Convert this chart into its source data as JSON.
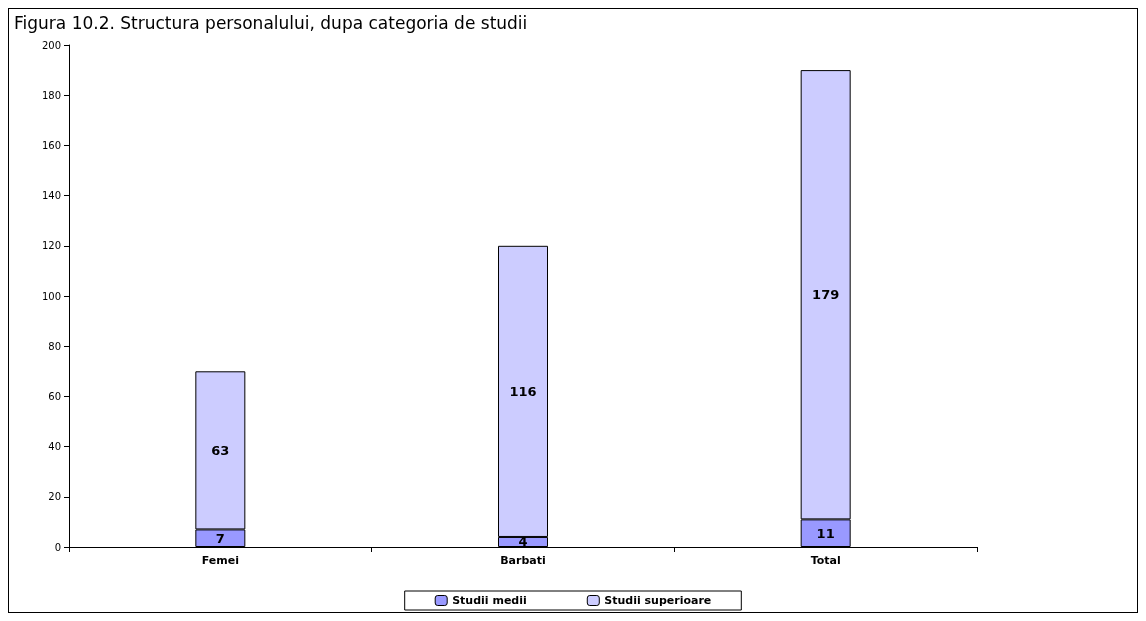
{
  "chart_data": {
    "type": "bar",
    "title": "Figura 10.2. Structura personalului, dupa categoria de studii",
    "categories": [
      "Femei",
      "Barbati",
      "Total"
    ],
    "stacked": true,
    "series": [
      {
        "name": "Studii medii",
        "color": "#9999ff",
        "values": [
          7,
          4,
          11
        ]
      },
      {
        "name": "Studii superioare",
        "color": "#ccccff",
        "values": [
          63,
          116,
          179
        ]
      }
    ],
    "ylim": [
      0,
      200
    ],
    "yticks": [
      0,
      20,
      40,
      60,
      80,
      100,
      120,
      140,
      160,
      180,
      200
    ],
    "grid": false,
    "legend": "bottom",
    "data_labels": true
  }
}
